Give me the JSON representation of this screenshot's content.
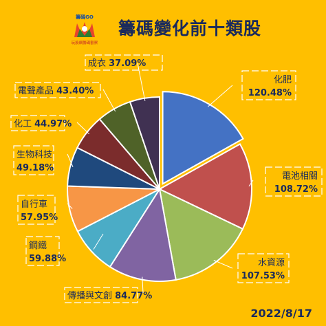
{
  "header": {
    "title": "籌碼變化前十類股",
    "logo_text": "籌碼GO",
    "logo_subtext": "玩股網籌碼觀察"
  },
  "footer": {
    "date": "2022/8/17"
  },
  "colors": {
    "background": "#FFBF00",
    "title": "#1a2a5c",
    "label_box_border": "#ffffff"
  },
  "chart_data": {
    "type": "pie",
    "title": "籌碼變化前十類股",
    "slices": [
      {
        "label": "化肥",
        "value_text": "120.48%",
        "value": 120.48,
        "color": "#4472C4",
        "exploded": true
      },
      {
        "label": "電池相關",
        "value_text": "108.72%",
        "value": 108.72,
        "color": "#C0504D"
      },
      {
        "label": "水資源",
        "value_text": "107.53%",
        "value": 107.53,
        "color": "#9BBB59"
      },
      {
        "label": "傳播與文創",
        "value_text": "84.77%",
        "value": 84.77,
        "color": "#8064A2"
      },
      {
        "label": "鋼鐵",
        "value_text": "59.88%",
        "value": 59.88,
        "color": "#4BACC6"
      },
      {
        "label": "自行車",
        "value_text": "57.95%",
        "value": 57.95,
        "color": "#F79646"
      },
      {
        "label": "生物科技",
        "value_text": "49.18%",
        "value": 49.18,
        "color": "#1F497D"
      },
      {
        "label": "化工",
        "value_text": "44.97%",
        "value": 44.97,
        "color": "#7B2C2C"
      },
      {
        "label": "電聲產品",
        "value_text": "43.40%",
        "value": 43.4,
        "color": "#4F6228"
      },
      {
        "label": "成衣",
        "value_text": "37.09%",
        "value": 37.09,
        "color": "#403152"
      }
    ]
  }
}
